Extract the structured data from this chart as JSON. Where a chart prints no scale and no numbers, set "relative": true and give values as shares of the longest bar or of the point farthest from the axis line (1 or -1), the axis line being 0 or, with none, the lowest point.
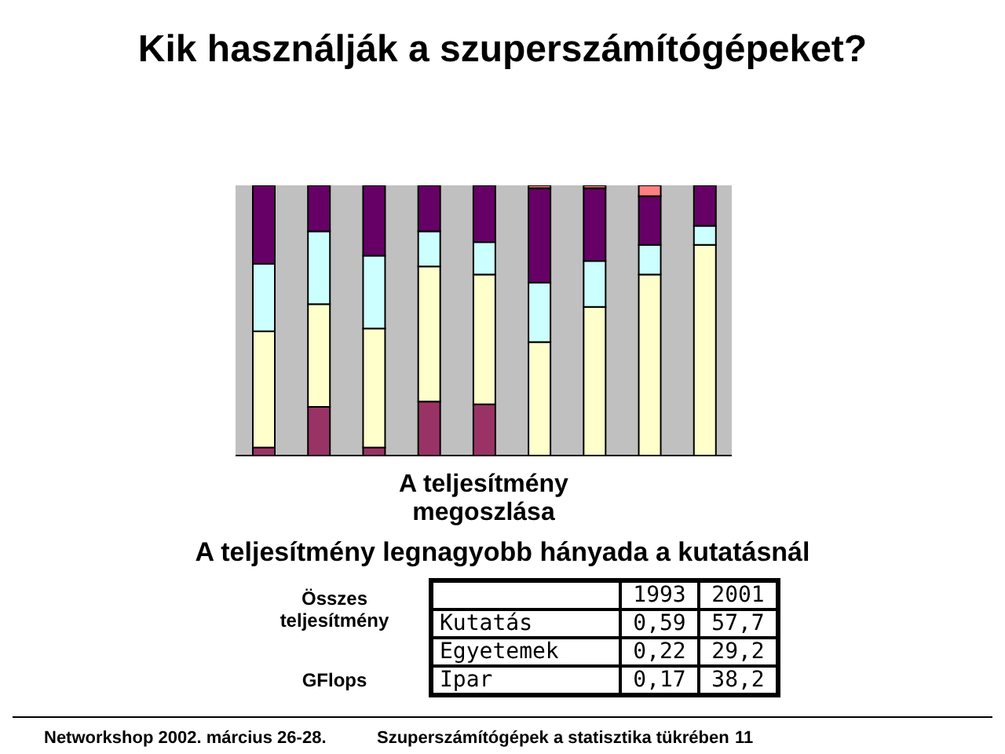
{
  "chart_data": [
    {
      "type": "bar",
      "title": "Kik használják a szuperszámítógépeket?",
      "xlabel": "A teljesítmény megoszlása",
      "stacked": true,
      "relative": true,
      "categories": [
        null,
        null,
        null,
        null,
        null,
        null,
        null,
        null,
        null
      ],
      "series": [
        {
          "color": "#993366",
          "values": [
            0.03,
            0.18,
            0.03,
            0.2,
            0.19,
            0,
            0,
            0,
            0
          ]
        },
        {
          "color": "#ffffcc",
          "values": [
            0.43,
            0.38,
            0.44,
            0.5,
            0.48,
            0.42,
            0.55,
            0.67,
            0.78
          ]
        },
        {
          "color": "#ccffff",
          "values": [
            0.25,
            0.27,
            0.27,
            0.13,
            0.12,
            0.22,
            0.17,
            0.11,
            0.07
          ]
        },
        {
          "color": "#660066",
          "values": [
            0.29,
            0.17,
            0.26,
            0.17,
            0.21,
            0.35,
            0.27,
            0.18,
            0.15
          ]
        },
        {
          "color": "#ff8080",
          "values": [
            0,
            0,
            0,
            0,
            0,
            0.01,
            0.01,
            0.04,
            0
          ]
        }
      ],
      "annotations": [
        "Networkshop 2002. március 26-28.",
        "Szuperszámítógépek a statisztika tükrében",
        "11"
      ]
    },
    {
      "type": "other",
      "title": "A teljesítmény legnagyobb hányada a kutatásnál",
      "categories": [
        "1993",
        "2001"
      ],
      "y_categories": [
        "Kutatás",
        "Egyetemek",
        "Ipar"
      ],
      "cell_labels": [
        [
          "0,59",
          "57,7"
        ],
        [
          "0,22",
          "29,2"
        ],
        [
          "0,17",
          "38,2"
        ]
      ],
      "annotations": [
        "Összes teljesítmény",
        "GFlops"
      ]
    }
  ]
}
